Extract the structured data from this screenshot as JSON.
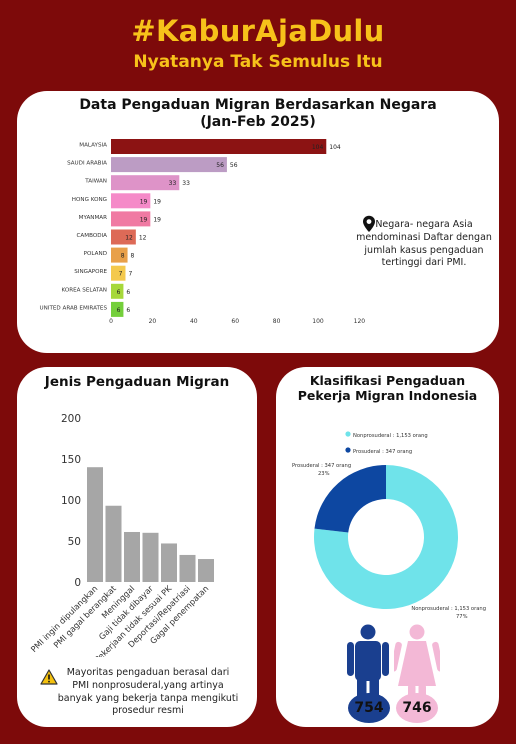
{
  "header": {
    "title": "#KaburAjaDulu",
    "subtitle": "Nyatanya Tak Semulus Itu"
  },
  "country_card": {
    "title_line1": "Data Pengaduan Migran Berdasarkan Negara",
    "title_line2": "(Jan-Feb 2025)",
    "note": "Negara- negara Asia mendominasi Daftar dengan jumlah kasus pengaduan tertinggi dari PMI.",
    "icon": "map-pin-icon"
  },
  "type_card": {
    "title": "Jenis Pengaduan Migran",
    "note": "Mayoritas pengaduan berasal dari PMI nonprosuderal,yang artinya banyak yang bekerja tanpa mengikuti prosedur resmi",
    "icon": "warning-icon"
  },
  "class_card": {
    "title_line1": "Klasifikasi Pengaduan",
    "title_line2": "Pekerja Migran Indonesia",
    "male_count": "754",
    "female_count": "746",
    "male_color": "#1a3f8f",
    "female_color": "#f3b8d6"
  },
  "chart_data": [
    {
      "type": "bar",
      "orientation": "horizontal",
      "categories": [
        "MALAYSIA",
        "SAUDI ARABIA",
        "TAIWAN",
        "HONG KONG",
        "MYANMAR",
        "CAMBODIA",
        "POLAND",
        "SINGAPORE",
        "KOREA SELATAN",
        "UNITED ARAB EMIRATES"
      ],
      "values": [
        104,
        56,
        33,
        19,
        19,
        12,
        8,
        7,
        6,
        6
      ],
      "colors": [
        "#8c1313",
        "#bc9cc4",
        "#de93c8",
        "#f58ac8",
        "#f07aa3",
        "#dd6a57",
        "#e8a04a",
        "#f4c94d",
        "#a6d83a",
        "#74cf3b"
      ],
      "xlim": [
        0,
        120
      ],
      "xticks": [
        0,
        20,
        40,
        60,
        80,
        100,
        120
      ]
    },
    {
      "type": "bar",
      "categories": [
        "PMI ingin dipulangkan",
        "PMI gagal berangkat",
        "Meninggal",
        "Gaji tidak dibayar",
        "Pekerjaan tidak sesuai PK",
        "Deportasi/Repatriasi",
        "Gagal penempatan"
      ],
      "values": [
        140,
        93,
        61,
        60,
        47,
        33,
        28
      ],
      "color": "#a6a6a6",
      "ylim": [
        0,
        200
      ],
      "yticks": [
        0,
        50,
        100,
        150,
        200
      ]
    },
    {
      "type": "pie",
      "donut": true,
      "labels": [
        "Nonprosuderal : 1,153 orang",
        "Prosuderal : 347 orang"
      ],
      "values": [
        1153,
        347
      ],
      "percent_labels": [
        "77%",
        "23%"
      ],
      "colors": [
        "#6fe3ea",
        "#0d47a1"
      ]
    }
  ]
}
